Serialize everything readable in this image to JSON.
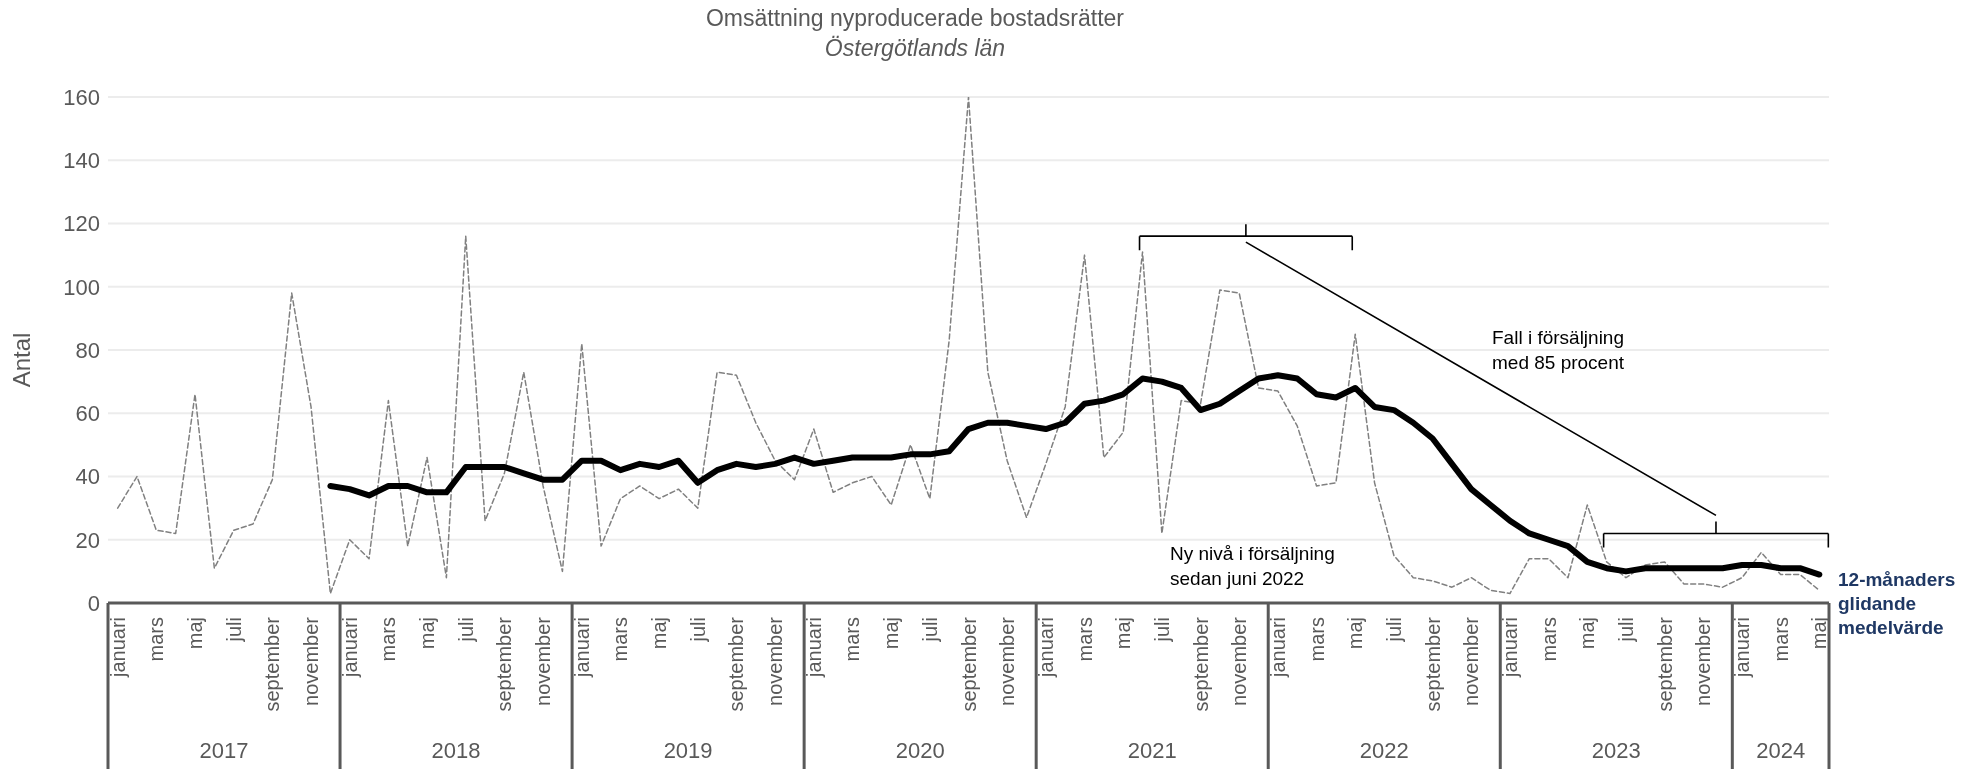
{
  "chart_data": {
    "type": "line",
    "title": "Omsättning nyproducerade bostadsrätter",
    "subtitle": "Östergötlands län",
    "ylabel": "Antal",
    "categories": [
      "januari",
      null,
      "mars",
      null,
      "maj",
      null,
      "juli",
      null,
      "september",
      null,
      "november",
      null,
      "januari",
      null,
      "mars",
      null,
      "maj",
      null,
      "juli",
      null,
      "september",
      null,
      "november",
      null,
      "januari",
      null,
      "mars",
      null,
      "maj",
      null,
      "juli",
      null,
      "september",
      null,
      "november",
      null,
      "januari",
      null,
      "mars",
      null,
      "maj",
      null,
      "juli",
      null,
      "september",
      null,
      "november",
      null,
      "januari",
      null,
      "mars",
      null,
      "maj",
      null,
      "juli",
      null,
      "september",
      null,
      "november",
      null,
      "januari",
      null,
      "mars",
      null,
      "maj",
      null,
      "juli",
      null,
      "september",
      null,
      "november",
      null,
      "januari",
      null,
      "mars",
      null,
      "maj",
      null,
      "juli",
      null,
      "september",
      null,
      "november",
      null,
      "januari",
      null,
      "mars",
      null,
      "maj"
    ],
    "series": [
      {
        "color": "#808080",
        "line_style": "dashed",
        "values": [
          30,
          40,
          23,
          22,
          66,
          11,
          23,
          25,
          39,
          98,
          62,
          3,
          20,
          14,
          64,
          18,
          46,
          8,
          116,
          26,
          41,
          73,
          37,
          10,
          82,
          18,
          33,
          37,
          33,
          36,
          30,
          73,
          72,
          57,
          45,
          39,
          55,
          35,
          38,
          40,
          31,
          50,
          33,
          83,
          160,
          73,
          45,
          27,
          44,
          62,
          110,
          46,
          54,
          111,
          22,
          64,
          63,
          99,
          98,
          68,
          67,
          56,
          37,
          38,
          85,
          38,
          15,
          8,
          7,
          5,
          8,
          4,
          3,
          14,
          14,
          8,
          31,
          13,
          8,
          12,
          13,
          6,
          6,
          5,
          8,
          16,
          9,
          9,
          4
        ]
      },
      {
        "name": "12-månaders glidande medelvärde",
        "color": "#000000",
        "line_style": "solid",
        "values": [
          null,
          null,
          null,
          null,
          null,
          null,
          null,
          null,
          null,
          null,
          null,
          37,
          36,
          34,
          37,
          37,
          35,
          35,
          43,
          43,
          43,
          41,
          39,
          39,
          45,
          45,
          42,
          44,
          43,
          45,
          38,
          42,
          44,
          43,
          44,
          46,
          44,
          45,
          46,
          46,
          46,
          47,
          47,
          48,
          55,
          57,
          57,
          56,
          55,
          57,
          63,
          64,
          66,
          71,
          70,
          68,
          61,
          63,
          67,
          71,
          72,
          71,
          66,
          65,
          68,
          62,
          61,
          57,
          52,
          44,
          36,
          31,
          26,
          22,
          20,
          18,
          13,
          11,
          10,
          11,
          11,
          11,
          11,
          11,
          12,
          12,
          11,
          11,
          9
        ]
      }
    ],
    "ylim": [
      0,
      160
    ],
    "yticks": [
      0,
      20,
      40,
      60,
      80,
      100,
      120,
      140,
      160
    ],
    "grid": "y",
    "marker": "none",
    "annotations": [
      "2017",
      "2018",
      "2019",
      "2020",
      "2021",
      "2022",
      "2023",
      "2024",
      "Fall i försäljning med 85 procent",
      "Ny nivå i försäljning sedan juni 2022"
    ]
  }
}
